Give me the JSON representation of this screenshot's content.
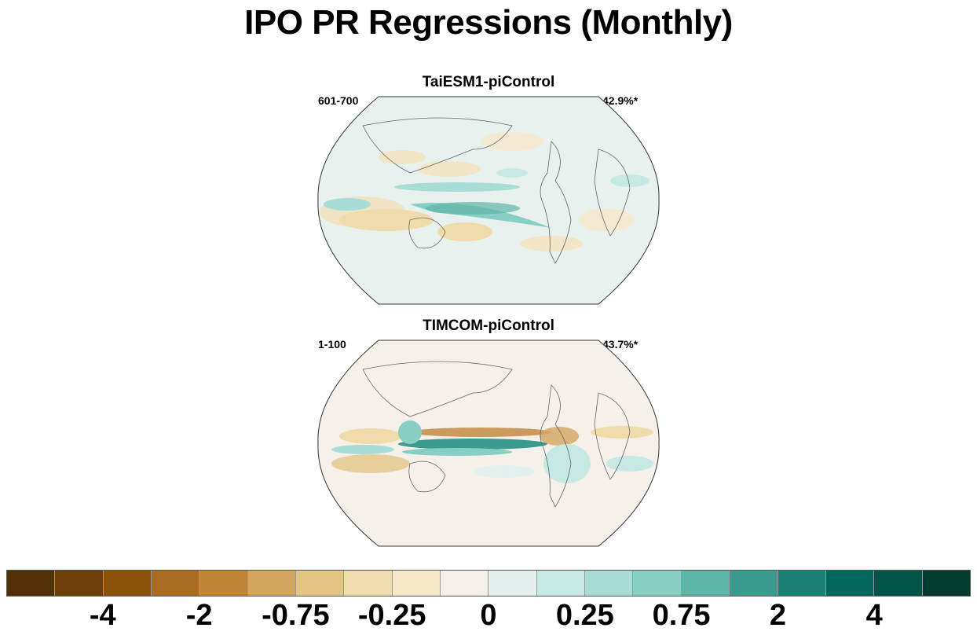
{
  "title": "IPO PR Regressions (Monthly)",
  "panels": [
    {
      "title": "TaiESM1-piControl",
      "left_label": "601-700",
      "right_label": "42.9%*"
    },
    {
      "title": "TIMCOM-piControl",
      "left_label": "1-100",
      "right_label": "43.7%*"
    }
  ],
  "colorbar": {
    "colors": [
      "#543005",
      "#6e3f0a",
      "#8c510a",
      "#a86b22",
      "#c18538",
      "#d4a55f",
      "#e3c686",
      "#efdcaa",
      "#f5e8c8",
      "#f5f1ea",
      "#e4f0ee",
      "#c7e9e4",
      "#a8ddd5",
      "#87cfc2",
      "#5fb5a8",
      "#3b9b8f",
      "#1d8075",
      "#01665e",
      "#015448",
      "#003c30"
    ],
    "tick_labels": [
      "-4",
      "-2",
      "-0.75",
      "-0.25",
      "0",
      "0.25",
      "0.75",
      "2",
      "4"
    ]
  },
  "chart_data": {
    "type": "heatmap",
    "title": "IPO PR Regressions (Monthly)",
    "maps": [
      {
        "name": "TaiESM1-piControl",
        "period": "601-700",
        "value": "42.9%*"
      },
      {
        "name": "TIMCOM-piControl",
        "period": "1-100",
        "value": "43.7%*"
      }
    ],
    "color_levels": [
      "-4",
      "-2",
      "-0.75",
      "-0.25",
      "0",
      "0.25",
      "0.75",
      "2",
      "4"
    ]
  }
}
